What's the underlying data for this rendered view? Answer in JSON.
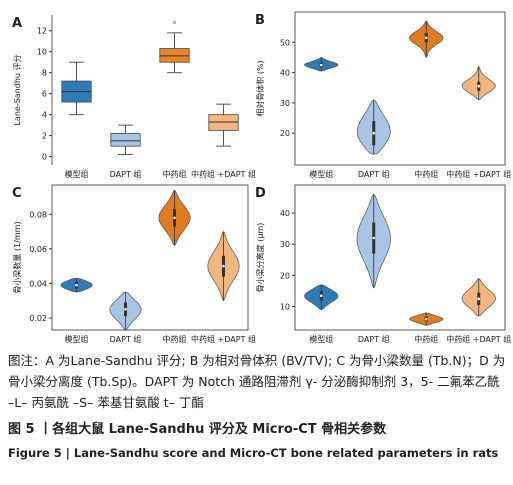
{
  "chart_data": [
    {
      "type": "box",
      "label": "A",
      "ylabel": "Lane-Sandhu 评分",
      "categories": [
        "模型组",
        "DAPT 组",
        "中药组",
        "中药组 +DAPT 组"
      ],
      "colors": [
        "#2f7bb5",
        "#aac4e6",
        "#e8842a",
        "#f2b680"
      ],
      "stats": [
        {
          "min": 4,
          "q1": 5.2,
          "median": 6.2,
          "q3": 7.2,
          "max": 9
        },
        {
          "min": 0.2,
          "q1": 1,
          "median": 1.5,
          "q3": 2.2,
          "max": 3
        },
        {
          "min": 8,
          "q1": 9,
          "median": 9.6,
          "q3": 10.3,
          "max": 11.8
        },
        {
          "min": 1,
          "q1": 2.5,
          "median": 3.3,
          "q3": 4,
          "max": 5
        }
      ],
      "outliers": [
        [],
        [],
        [
          12.8
        ],
        []
      ],
      "ylim": [
        -0.8,
        13.5
      ],
      "yticks": [
        0,
        2,
        4,
        6,
        8,
        10,
        12
      ]
    },
    {
      "type": "violin",
      "label": "B",
      "ylabel": "相对骨体积 (%)",
      "categories": [
        "模型组",
        "DAPT 组",
        "中药组",
        "中药组 +DAPT 组"
      ],
      "colors": [
        "#2f7bb5",
        "#aac4e6",
        "#e07b22",
        "#f2b680"
      ],
      "stats": [
        {
          "min": 40.5,
          "q1": 41.8,
          "median": 42.5,
          "q3": 43.3,
          "max": 45
        },
        {
          "min": 13,
          "q1": 16,
          "median": 20,
          "q3": 24,
          "max": 31
        },
        {
          "min": 45,
          "q1": 50,
          "median": 51.5,
          "q3": 53,
          "max": 57
        },
        {
          "min": 31,
          "q1": 34,
          "median": 35.5,
          "q3": 37,
          "max": 42
        }
      ],
      "ylim": [
        9.5,
        60
      ],
      "yticks": [
        20,
        30,
        40,
        50
      ]
    },
    {
      "type": "violin",
      "label": "C",
      "ylabel": "骨小梁数量 (1/mm)",
      "categories": [
        "模型组",
        "DAPT 组",
        "中药组",
        "中药组 +DAPT 组"
      ],
      "colors": [
        "#2f7bb5",
        "#aac4e6",
        "#e07b22",
        "#f2b680"
      ],
      "stats": [
        {
          "min": 0.035,
          "q1": 0.037,
          "median": 0.039,
          "q3": 0.041,
          "max": 0.043
        },
        {
          "min": 0.013,
          "q1": 0.021,
          "median": 0.025,
          "q3": 0.029,
          "max": 0.035
        },
        {
          "min": 0.062,
          "q1": 0.073,
          "median": 0.078,
          "q3": 0.083,
          "max": 0.094
        },
        {
          "min": 0.03,
          "q1": 0.044,
          "median": 0.05,
          "q3": 0.056,
          "max": 0.07
        }
      ],
      "ylim": [
        0.013,
        0.097
      ],
      "yticks": [
        0.02,
        0.04,
        0.06,
        0.08
      ]
    },
    {
      "type": "violin",
      "label": "D",
      "ylabel": "骨小梁分离度 (μm)",
      "categories": [
        "模型组",
        "DAPT 组",
        "中药组",
        "中药组 +DAPT 组"
      ],
      "colors": [
        "#2f7bb5",
        "#aac4e6",
        "#e07b22",
        "#f2b680"
      ],
      "stats": [
        {
          "min": 9,
          "q1": 12,
          "median": 13.5,
          "q3": 15,
          "max": 17
        },
        {
          "min": 16,
          "q1": 27,
          "median": 32,
          "q3": 37,
          "max": 46
        },
        {
          "min": 4,
          "q1": 5.3,
          "median": 6,
          "q3": 6.8,
          "max": 8
        },
        {
          "min": 7,
          "q1": 10.5,
          "median": 12.5,
          "q3": 14.5,
          "max": 19
        }
      ],
      "ylim": [
        2.5,
        49
      ],
      "yticks": [
        10,
        20,
        30,
        40
      ]
    }
  ],
  "caption": {
    "note": "图注：A 为Lane-Sandhu 评分; B 为相对骨体积 (BV/TV); C 为骨小梁数量 (Tb.N)；D 为骨小梁分离度 (Tb.Sp)。DAPT 为 Notch 通路阻滞剂 γ- 分泌酶抑制剂 3，5- 二氟苯乙酰 –L– 丙氨酰 –S– 苯基甘氨酸 t– 丁酯",
    "title_cn": "图 5 丨各组大鼠 Lane-Sandhu 评分及 Micro-CT 骨相关参数",
    "title_en": "Figure 5 | Lane-Sandhu score and Micro-CT bone related parameters in rats"
  }
}
